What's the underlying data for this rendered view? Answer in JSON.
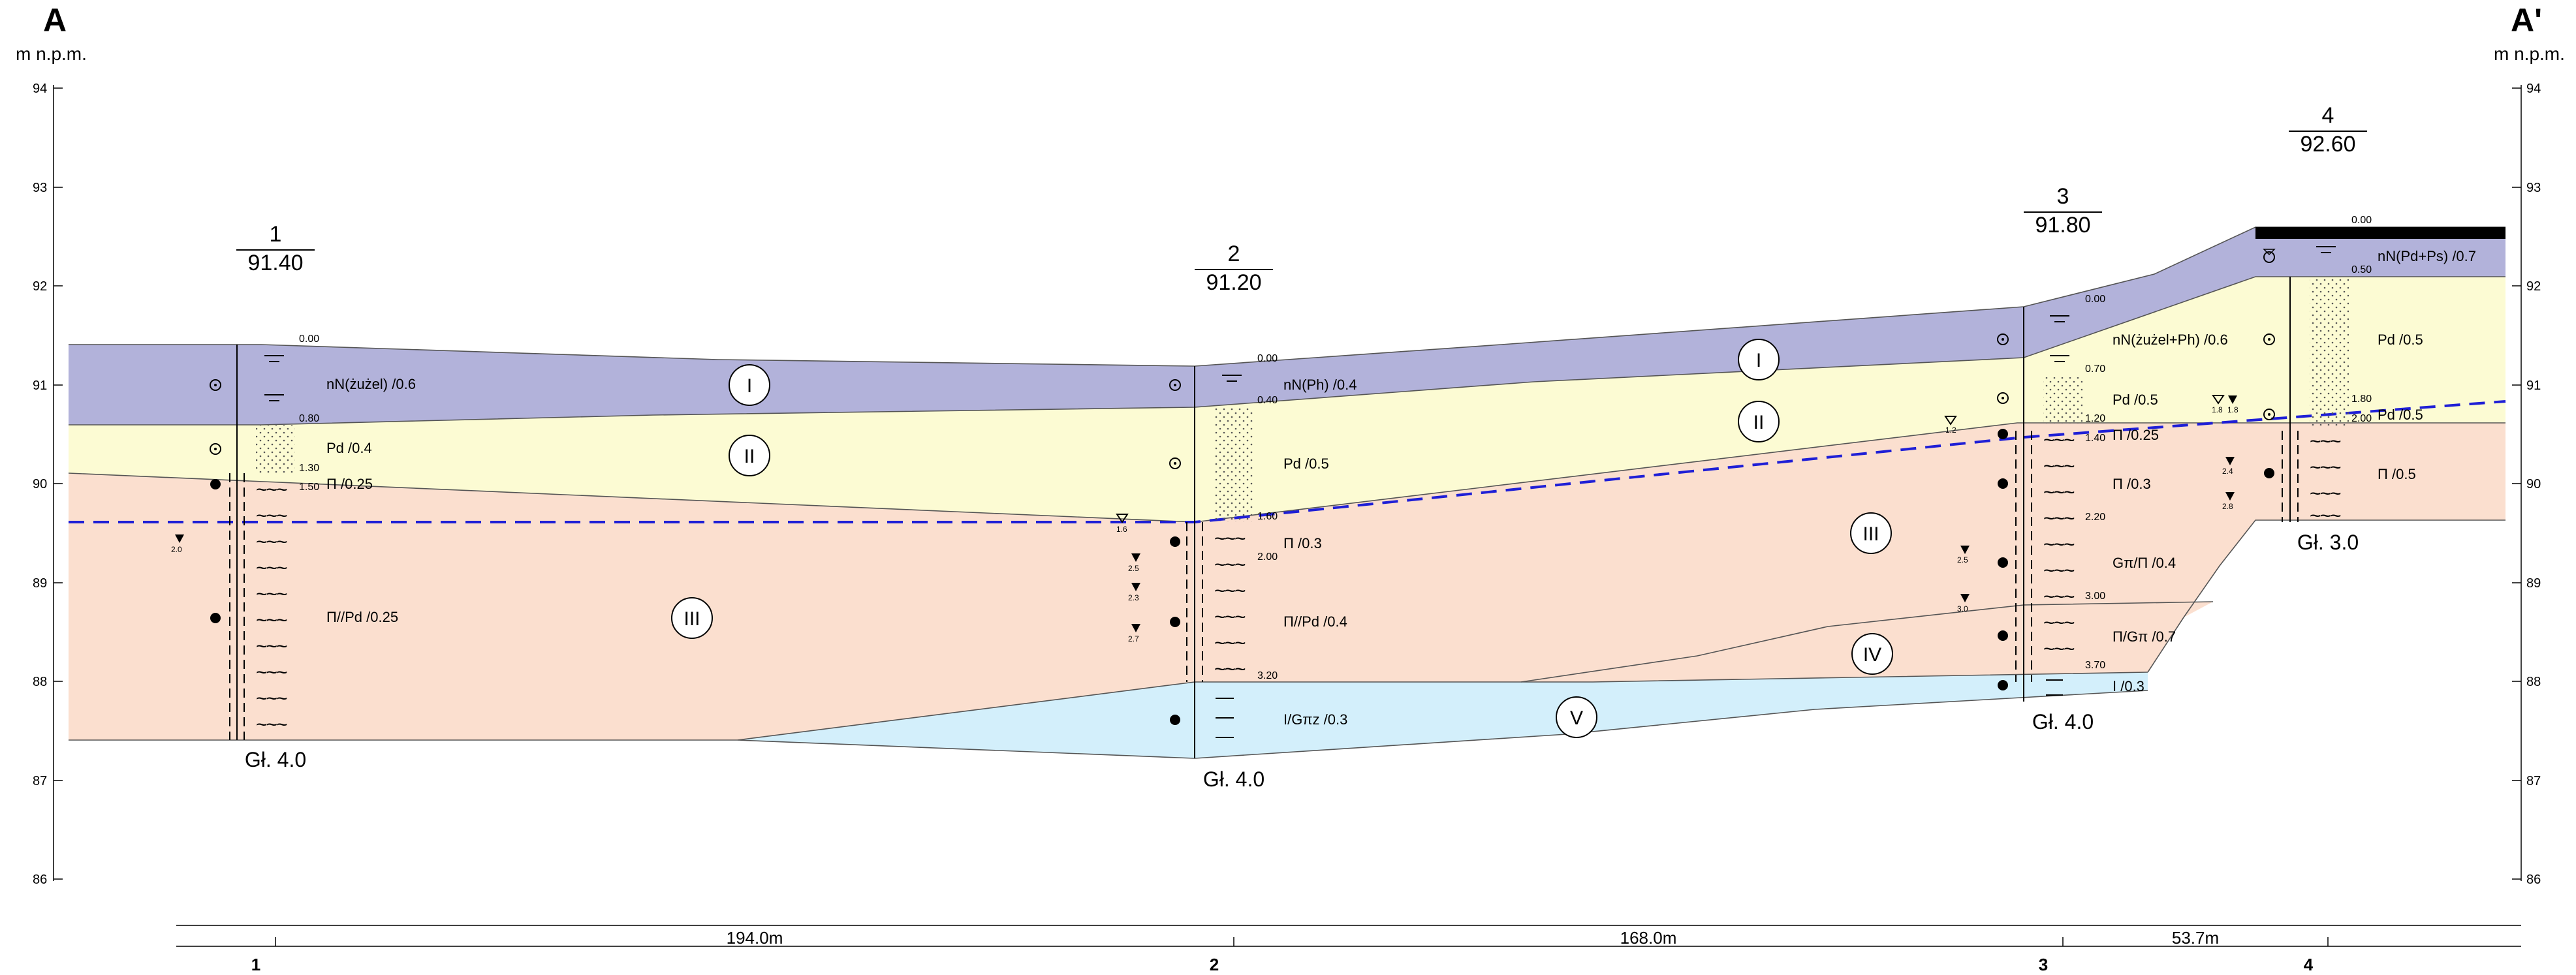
{
  "ends": {
    "left": {
      "label": "A",
      "unit": "m n.p.m."
    },
    "right": {
      "label": "A'",
      "unit": "m n.p.m."
    }
  },
  "axis": {
    "ticks": [
      "94",
      "93",
      "92",
      "91",
      "90",
      "89",
      "88",
      "87",
      "86"
    ]
  },
  "boreholes": [
    {
      "id": "1",
      "elevation": "91.40",
      "depth": "Gł. 4.0",
      "bottom": "1"
    },
    {
      "id": "2",
      "elevation": "91.20",
      "depth": "Gł. 4.0",
      "bottom": "2"
    },
    {
      "id": "3",
      "elevation": "91.80",
      "depth": "Gł. 4.0",
      "bottom": "3"
    },
    {
      "id": "4",
      "elevation": "92.60",
      "depth": "Gł. 3.0",
      "bottom": "4"
    }
  ],
  "distances": [
    "194.0m",
    "168.0m",
    "53.7m"
  ],
  "layers": [
    {
      "id": "I",
      "color": "#b2b2da"
    },
    {
      "id": "II",
      "color": "#fcfbd3"
    },
    {
      "id": "III",
      "color": "#fbdfcf"
    },
    {
      "id": "IV",
      "color": "#fbdfcf"
    },
    {
      "id": "V",
      "color": "#d3effb"
    }
  ],
  "bh1": {
    "depths": [
      "0.00",
      "0.80",
      "1.30",
      "1.50"
    ],
    "soils": [
      "nN(żużel) /0.6",
      "Pd /0.4",
      "Π /0.25",
      "Π//Pd /0.25"
    ],
    "water": "2.0"
  },
  "bh2": {
    "depths": [
      "0.00",
      "0.40",
      "1.60",
      "2.00",
      "3.20"
    ],
    "soils": [
      "nN(Ph) /0.4",
      "Pd /0.5",
      "Π /0.3",
      "Π//Pd /0.4",
      "I/Gπz /0.3"
    ],
    "water": [
      "1.6",
      "2.5",
      "2.3",
      "2.7"
    ]
  },
  "bh3": {
    "depths": [
      "0.00",
      "0.70",
      "1.20",
      "1.40",
      "2.20",
      "3.00",
      "3.70"
    ],
    "soils": [
      "nN(żużel+Ph) /0.6",
      "Pd /0.5",
      "Π /0.25",
      "Π /0.3",
      "Gπ/Π /0.4",
      "Π/Gπ /0.7",
      "I /0.3"
    ],
    "water": [
      "1.2",
      "2.5",
      "3.0"
    ]
  },
  "bh4": {
    "depths": [
      "0.00",
      "0.50",
      "1.80",
      "2.00"
    ],
    "soils": [
      "nN(Pd+Ps) /0.7",
      "Pd /0.5",
      "Pd /0.5",
      "Π /0.5"
    ],
    "water": [
      "1.8",
      "1.8",
      "2.4",
      "2.8"
    ]
  },
  "colors": {
    "groundwater": "#1f1fd6",
    "surface": "#555555"
  }
}
